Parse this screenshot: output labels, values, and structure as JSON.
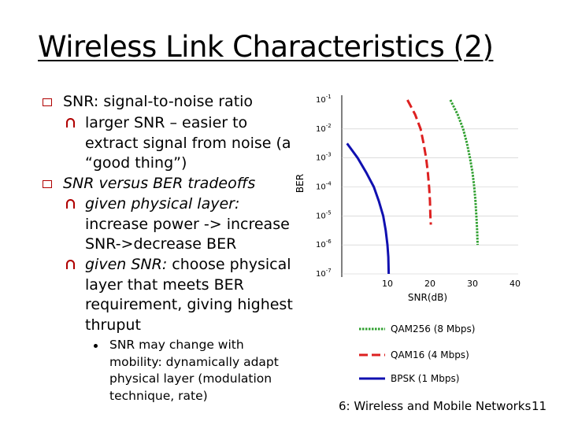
{
  "title": "Wireless Link Characteristics (2)",
  "bullets": {
    "snr_def": "SNR: signal-to-noise ratio",
    "snr_sub_lines": [
      "larger SNR – easier to",
      "extract signal from noise (a",
      "“good thing”)"
    ],
    "tradeoffs": "SNR versus BER tradeoffs",
    "phys_label": "given physical layer:",
    "phys_lines": [
      "increase power -> increase",
      "SNR->decrease BER"
    ],
    "given_snr_label": "given SNR:",
    "given_snr_rest": "choose physical",
    "given_snr_lines": [
      "layer that meets BER",
      "requirement, giving highest",
      "thruput"
    ],
    "small_lines": [
      "SNR may change with",
      "mobility: dynamically adapt",
      "physical layer (modulation",
      "technique, rate)"
    ]
  },
  "chart_data": {
    "type": "line",
    "ylabel": "BER",
    "xlabel": "SNR(dB)",
    "yscale": "log",
    "xlim": [
      0,
      40
    ],
    "ylim": [
      1e-07,
      0.1
    ],
    "x_ticks": [
      "10",
      "20",
      "30",
      "40"
    ],
    "y_ticks": [
      {
        "base": "10",
        "exp": "-1"
      },
      {
        "base": "10",
        "exp": "-2"
      },
      {
        "base": "10",
        "exp": "-3"
      },
      {
        "base": "10",
        "exp": "-4"
      },
      {
        "base": "10",
        "exp": "-5"
      },
      {
        "base": "10",
        "exp": "-6"
      },
      {
        "base": "10",
        "exp": "-7"
      }
    ],
    "series": [
      {
        "name": "QAM256 (8 Mbps)",
        "color": "#30a030",
        "dash": "dotted",
        "points": [
          [
            24.8,
            0.1
          ],
          [
            26.5,
            0.0316
          ],
          [
            27.8,
            0.01
          ],
          [
            28.7,
            0.00316
          ],
          [
            29.4,
            0.001
          ],
          [
            30.0,
            0.000316
          ],
          [
            30.4,
            0.0001
          ],
          [
            30.7,
            3.16e-05
          ],
          [
            30.9,
            1e-05
          ],
          [
            31.1,
            3.16e-06
          ],
          [
            31.2,
            1e-06
          ]
        ]
      },
      {
        "name": "QAM16 (4 Mbps)",
        "color": "#dd2020",
        "dash": "dashed",
        "points": [
          [
            14.7,
            0.1
          ],
          [
            16.5,
            0.0316
          ],
          [
            17.8,
            0.01
          ],
          [
            18.5,
            0.00316
          ],
          [
            19.1,
            0.001
          ],
          [
            19.5,
            0.000316
          ],
          [
            19.8,
            0.0001
          ],
          [
            20.0,
            3.16e-05
          ],
          [
            20.1,
            1e-05
          ],
          [
            20.2,
            5e-06
          ]
        ]
      },
      {
        "name": "BPSK (1 Mbps)",
        "color": "#1010b0",
        "dash": "solid",
        "points": [
          [
            0.5,
            0.00316
          ],
          [
            3.0,
            0.001
          ],
          [
            5.0,
            0.000316
          ],
          [
            6.8,
            0.0001
          ],
          [
            8.0,
            3.16e-05
          ],
          [
            9.0,
            1e-05
          ],
          [
            9.6,
            3.16e-06
          ],
          [
            10.0,
            1e-06
          ],
          [
            10.2,
            3.8e-07
          ],
          [
            10.3,
            1e-07
          ]
        ]
      }
    ]
  },
  "footer": "6: Wireless and Mobile Networks",
  "page_number": "11"
}
